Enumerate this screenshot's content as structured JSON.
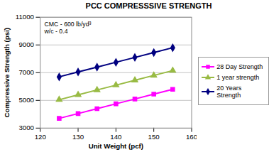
{
  "chart_data": {
    "type": "line",
    "title": "PCC COMPRESSSIVE STRENGTH",
    "annotations": [
      "CMC - 600 lb/yd³",
      "w/c - 0.4"
    ],
    "x_label": "Unit Weight (pcf)",
    "y_label": "Compressive Strength (psi)",
    "x": [
      125,
      130,
      135,
      140,
      145,
      150,
      155
    ],
    "series": [
      {
        "name": "28 Day Strength",
        "color": "#ff00ff",
        "marker": "square",
        "values": [
          3700,
          4050,
          4400,
          4750,
          5100,
          5450,
          5800
        ]
      },
      {
        "name": "1 year strength",
        "color": "#99bb44",
        "marker": "triangle",
        "values": [
          5050,
          5400,
          5750,
          6100,
          6450,
          6800,
          7150
        ]
      },
      {
        "name": "20 Years Strength",
        "color": "#000080",
        "marker": "diamond",
        "values": [
          6700,
          7050,
          7400,
          7750,
          8100,
          8450,
          8800
        ]
      }
    ],
    "xlim": [
      120,
      160
    ],
    "xticks": [
      120,
      130,
      140,
      150,
      160
    ],
    "ylim": [
      3000,
      11000
    ],
    "yticks": [
      3000,
      5000,
      7000,
      9000,
      11000
    ],
    "grid": true,
    "legend": "right"
  }
}
